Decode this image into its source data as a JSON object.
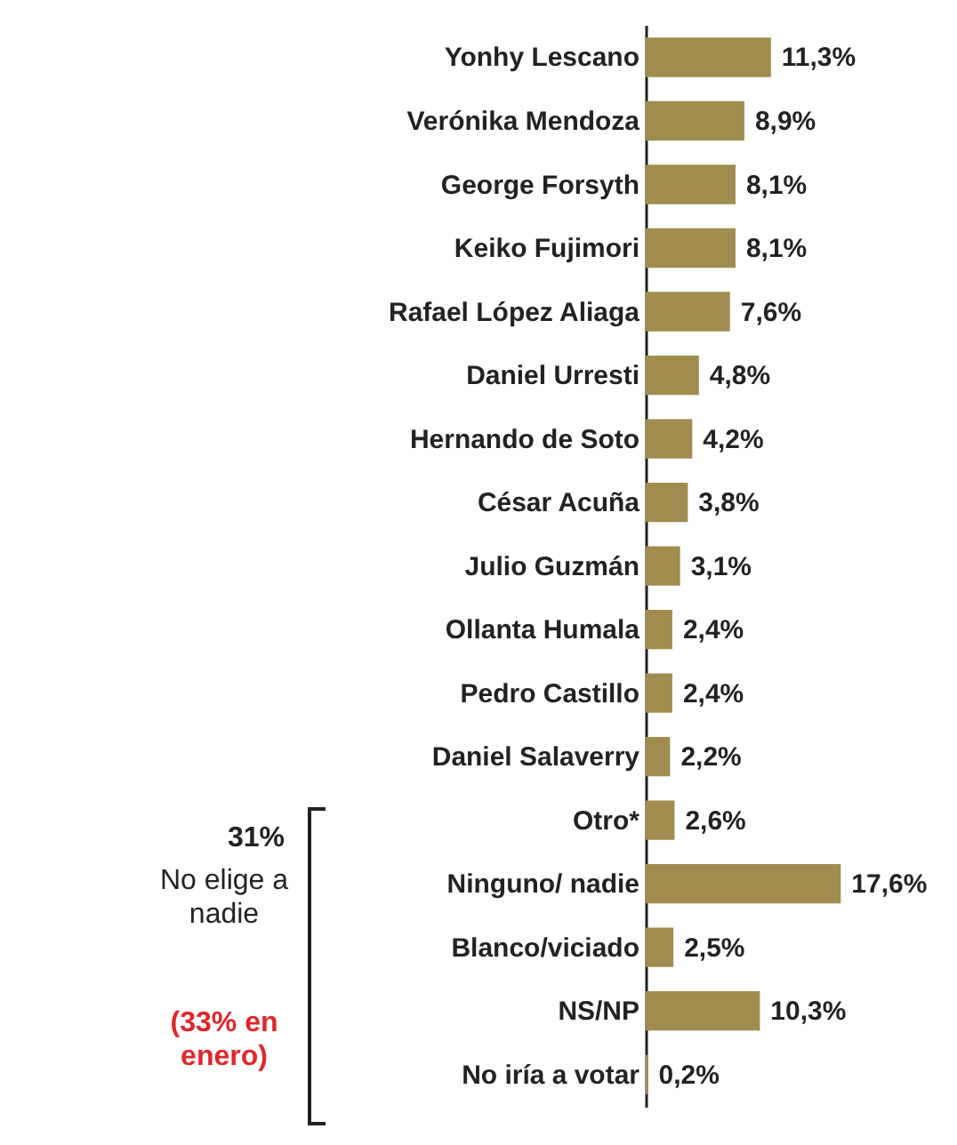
{
  "chart_data": {
    "type": "bar",
    "orientation": "horizontal",
    "categories": [
      "Yonhy Lescano",
      "Verónika Mendoza",
      "George Forsyth",
      "Keiko Fujimori",
      "Rafael López Aliaga",
      "Daniel Urresti",
      "Hernando de Soto",
      "César Acuña",
      "Julio Guzmán",
      "Ollanta Humala",
      "Pedro Castillo",
      "Daniel Salaverry",
      "Otro*",
      "Ninguno/ nadie",
      "Blanco/viciado",
      "NS/NP",
      "No iría a votar"
    ],
    "values": [
      11.3,
      8.9,
      8.1,
      8.1,
      7.6,
      4.8,
      4.2,
      3.8,
      3.1,
      2.4,
      2.4,
      2.2,
      2.6,
      17.6,
      2.5,
      10.3,
      0.2
    ],
    "value_labels": [
      "11,3%",
      "8,9%",
      "8,1%",
      "8,1%",
      "7,6%",
      "4,8%",
      "4,2%",
      "3,8%",
      "3,1%",
      "2,4%",
      "2,4%",
      "2,2%",
      "2,6%",
      "17,6%",
      "2,5%",
      "10,3%",
      "0,2%"
    ],
    "color": "#a08c4f",
    "annotations": [
      "31%",
      "No elige a nadie",
      "(33% en enero)"
    ]
  }
}
